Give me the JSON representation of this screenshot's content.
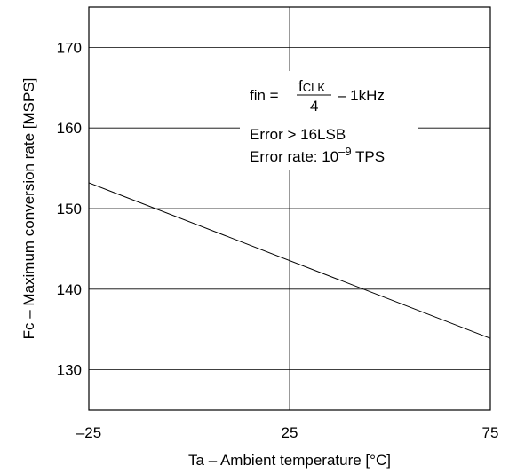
{
  "chart_data": {
    "type": "line",
    "title": "",
    "xlabel": "Ta – Ambient temperature [°C]",
    "ylabel": "Fc – Maximum conversion rate [MSPS]",
    "xlim": [
      -25,
      75
    ],
    "ylim": [
      125,
      175
    ],
    "x_ticks": [
      -25,
      25,
      75
    ],
    "x_tick_labels": [
      "–25",
      "25",
      "75"
    ],
    "y_ticks": [
      130,
      140,
      150,
      160,
      170
    ],
    "y_tick_labels": [
      "130",
      "140",
      "150",
      "160",
      "170"
    ],
    "grid": true,
    "series": [
      {
        "x": [
          -25,
          75
        ],
        "y": [
          153.2,
          133.9
        ]
      }
    ],
    "annotation": {
      "line1_prefix": "fin =",
      "fraction_numerator_main": "f",
      "fraction_numerator_sub": "CLK",
      "fraction_denominator": "4",
      "line1_suffix": "– 1kHz",
      "line2": "Error > 16LSB",
      "line3_prefix": "Error rate: 10",
      "line3_exponent": "–9",
      "line3_suffix": " TPS"
    }
  }
}
